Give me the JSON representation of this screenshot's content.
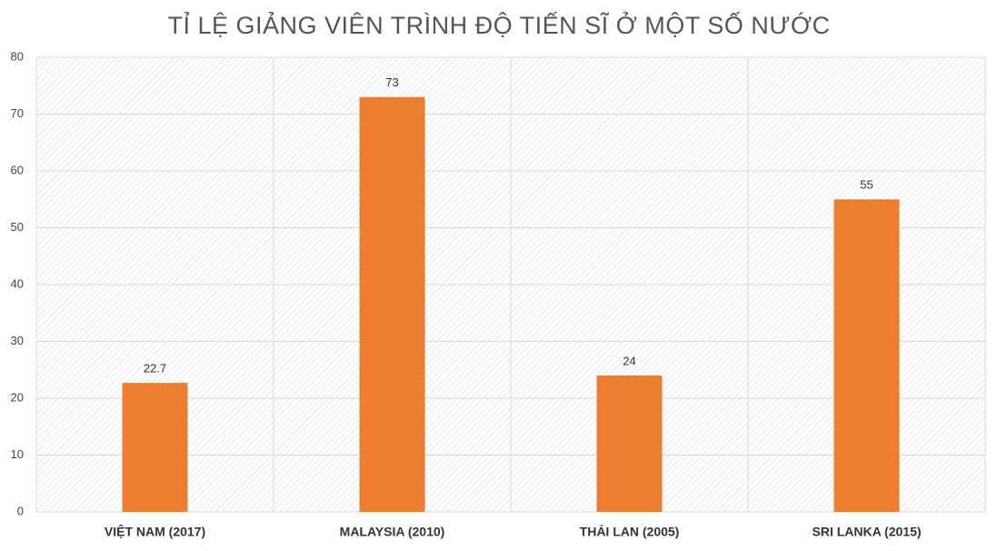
{
  "chart_data": {
    "type": "bar",
    "title": "TỈ LỆ GIẢNG VIÊN TRÌNH ĐỘ TIẾN SĨ Ở MỘT SỐ NƯỚC",
    "categories": [
      "VIỆT NAM (2017)",
      "MALAYSIA (2010)",
      "THÁI LAN (2005)",
      "SRI LANKA (2015)"
    ],
    "values": [
      22.7,
      73,
      24,
      55
    ],
    "color": "#ed7d31",
    "ylim": [
      0,
      80
    ],
    "yticks": [
      0,
      10,
      20,
      30,
      40,
      50,
      60,
      70,
      80
    ],
    "grid": true
  }
}
